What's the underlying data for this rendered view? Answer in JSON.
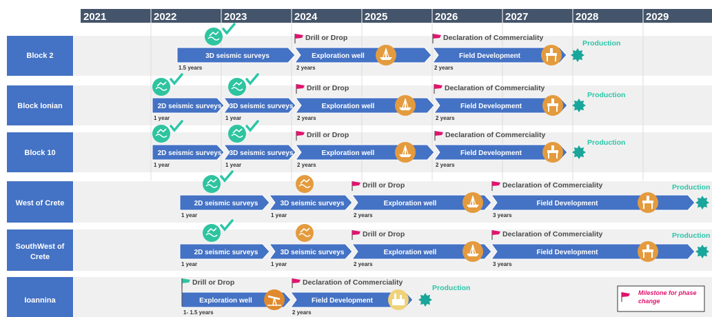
{
  "years": [
    "2021",
    "2022",
    "2023",
    "2024",
    "2025",
    "2026",
    "2027",
    "2028",
    "2029"
  ],
  "blocks": [
    {
      "name": "Block 2",
      "lines": [
        "Block 2"
      ],
      "phases": [
        {
          "label": "3D seismic surveys",
          "duration": "1.5 years",
          "icon": "seismic-icon",
          "status": "done"
        },
        {
          "label": "Exploration well",
          "duration": "2 years",
          "icon": "drillship-icon"
        },
        {
          "label": "Field Development",
          "duration": "2 years",
          "icon": "platform-icon"
        }
      ],
      "milestones": [
        {
          "label": "Drill or Drop",
          "flag": "magenta"
        },
        {
          "label": "Declaration of Commerciality",
          "flag": "magenta"
        }
      ],
      "production": "Production"
    },
    {
      "name": "Block Ionian",
      "lines": [
        "Block Ionian"
      ],
      "phases": [
        {
          "label": "2D seismic surveys",
          "duration": "1 year",
          "icon": "seismic-icon",
          "status": "done"
        },
        {
          "label": "3D seismic surveys",
          "duration": "1 year",
          "icon": "seismic-icon",
          "status": "done"
        },
        {
          "label": "Exploration well",
          "duration": "2 years",
          "icon": "drillship-icon"
        },
        {
          "label": "Field Development",
          "duration": "2 years",
          "icon": "platform-icon"
        }
      ],
      "milestones": [
        {
          "label": "Drill or Drop",
          "flag": "magenta"
        },
        {
          "label": "Declaration of Commerciality",
          "flag": "magenta"
        }
      ],
      "production": "Production"
    },
    {
      "name": "Block 10",
      "lines": [
        "Block 10"
      ],
      "phases": [
        {
          "label": "2D seismic surveys",
          "duration": "1 year",
          "icon": "seismic-icon",
          "status": "done"
        },
        {
          "label": "3D seismic surveys",
          "duration": "1 year",
          "icon": "seismic-icon",
          "status": "done"
        },
        {
          "label": "Exploration well",
          "duration": "2 years",
          "icon": "drillship-icon"
        },
        {
          "label": "Field Development",
          "duration": "2 years",
          "icon": "platform-icon"
        }
      ],
      "milestones": [
        {
          "label": "Drill or Drop",
          "flag": "magenta"
        },
        {
          "label": "Declaration of Commerciality",
          "flag": "magenta"
        }
      ],
      "production": "Production"
    },
    {
      "name": "West of Crete",
      "lines": [
        "West of Crete"
      ],
      "phases": [
        {
          "label": "2D seismic surveys",
          "duration": "1 year",
          "icon": "seismic-icon",
          "status": "done"
        },
        {
          "label": "3D seismic surveys",
          "duration": "1 year",
          "icon": "seismic-icon"
        },
        {
          "label": "Exploration well",
          "duration": "2 years",
          "icon": "drillship-icon"
        },
        {
          "label": "Field Development",
          "duration": "3 years",
          "icon": "platform-icon"
        }
      ],
      "milestones": [
        {
          "label": "Drill or Drop",
          "flag": "magenta"
        },
        {
          "label": "Declaration of Commerciality",
          "flag": "magenta"
        }
      ],
      "production": "Production"
    },
    {
      "name": "SouthWest of Crete",
      "lines": [
        "SouthWest of",
        "Crete"
      ],
      "phases": [
        {
          "label": "2D seismic surveys",
          "duration": "1 year",
          "icon": "seismic-icon",
          "status": "done"
        },
        {
          "label": "3D seismic surveys",
          "duration": "1 year",
          "icon": "seismic-icon"
        },
        {
          "label": "Exploration well",
          "duration": "2 years",
          "icon": "drillship-icon"
        },
        {
          "label": "Field Development",
          "duration": "3 years",
          "icon": "platform-icon"
        }
      ],
      "milestones": [
        {
          "label": "Drill or Drop",
          "flag": "magenta"
        },
        {
          "label": "Declaration of Commerciality",
          "flag": "magenta"
        }
      ],
      "production": "Production"
    },
    {
      "name": "Ioannina",
      "lines": [
        "Ioannina"
      ],
      "phases": [
        {
          "label": "Exploration well",
          "duration": "1- 1.5 years",
          "icon": "pumpjack-icon"
        },
        {
          "label": "Field Development",
          "duration": "2 years",
          "icon": "refinery-icon"
        }
      ],
      "milestones": [
        {
          "label": "Drill or Drop",
          "flag": "green"
        },
        {
          "label": "Declaration of Commerciality",
          "flag": "magenta"
        }
      ],
      "production": "Production"
    }
  ],
  "legend": {
    "text_lines": [
      "Milestone for phase",
      "change"
    ],
    "flag": "magenta"
  },
  "colors": {
    "header": "#44546a",
    "block_box": "#4472c4",
    "arrow": "#4472c4",
    "row_band": "#f0f0f0",
    "icon_done": "#2ec4a0",
    "icon_pending": "#e49b3e",
    "check": "#2bc6a8",
    "flag": "#e0146e",
    "flag_green": "#2ec4a0",
    "production_star": "#1aa69a",
    "production_text": "#2bc6a8"
  }
}
